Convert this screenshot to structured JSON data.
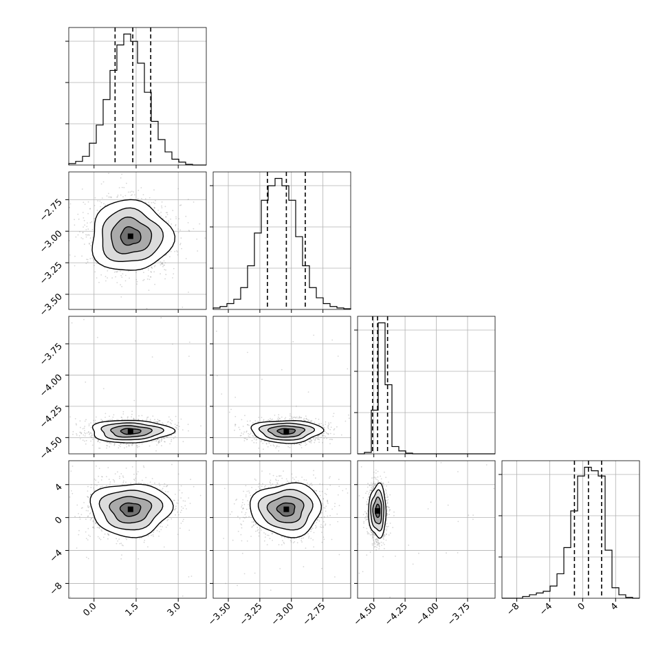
{
  "chart_data": {
    "type": "corner",
    "grid": true,
    "parameters": [
      {
        "range": [
          -0.9,
          4.0
        ],
        "ticks": [
          {
            "v": 0.0,
            "label": "0.0"
          },
          {
            "v": 1.5,
            "label": "1.5"
          },
          {
            "v": 3.0,
            "label": "3.0"
          }
        ],
        "quantiles": [
          0.75,
          1.38,
          2.02
        ],
        "hist": {
          "edges_start": -0.9,
          "bin_width": 0.245,
          "counts": [
            2,
            5,
            12,
            30,
            55,
            90,
            130,
            165,
            180,
            170,
            140,
            100,
            60,
            35,
            18,
            8,
            4,
            1,
            0,
            0
          ]
        }
      },
      {
        "range": [
          -3.62,
          -2.53
        ],
        "ticks": [
          {
            "v": -3.5,
            "label": "−3.50"
          },
          {
            "v": -3.25,
            "label": "−3.25"
          },
          {
            "v": -3.0,
            "label": "−3.00"
          },
          {
            "v": -2.75,
            "label": "−2.75"
          }
        ],
        "quantiles": [
          -3.19,
          -3.04,
          -2.89
        ],
        "hist": {
          "edges_start": -3.62,
          "bin_width": 0.0545,
          "counts": [
            2,
            4,
            8,
            14,
            30,
            60,
            105,
            150,
            170,
            180,
            170,
            150,
            100,
            60,
            30,
            16,
            8,
            4,
            2,
            1
          ]
        }
      },
      {
        "range": [
          -4.63,
          -3.53
        ],
        "ticks": [
          {
            "v": -4.5,
            "label": "−4.50"
          },
          {
            "v": -4.25,
            "label": "−4.25"
          },
          {
            "v": -4.0,
            "label": "−4.00"
          },
          {
            "v": -3.75,
            "label": "−3.75"
          }
        ],
        "quantiles": [
          -4.51,
          -4.47,
          -4.39
        ],
        "hist": {
          "edges_start": -4.63,
          "bin_width": 0.055,
          "counts": [
            0,
            2,
            60,
            180,
            95,
            10,
            4,
            1,
            0,
            0,
            0,
            0,
            0,
            0,
            0,
            0,
            0,
            0,
            0,
            0
          ]
        }
      },
      {
        "range": [
          -9.8,
          6.9
        ],
        "ticks": [
          {
            "v": -8,
            "label": "−8"
          },
          {
            "v": -4,
            "label": "−4"
          },
          {
            "v": 0,
            "label": "0"
          },
          {
            "v": 4,
            "label": "4"
          }
        ],
        "quantiles": [
          -1.0,
          0.7,
          2.3
        ],
        "hist": {
          "edges_start": -9.8,
          "bin_width": 0.835,
          "counts": [
            0,
            0,
            0,
            2,
            4,
            6,
            8,
            14,
            28,
            58,
            100,
            140,
            150,
            146,
            140,
            55,
            12,
            4,
            1,
            0
          ]
        }
      }
    ],
    "pairs": [
      {
        "row": 1,
        "col": 0,
        "center": [
          1.3,
          -3.04
        ],
        "sigma": [
          0.72,
          0.14
        ]
      },
      {
        "row": 2,
        "col": 0,
        "center": [
          1.3,
          -4.45
        ],
        "sigma": [
          0.72,
          0.045
        ]
      },
      {
        "row": 2,
        "col": 1,
        "center": [
          -3.04,
          -4.45
        ],
        "sigma": [
          0.14,
          0.045
        ]
      },
      {
        "row": 3,
        "col": 0,
        "center": [
          1.3,
          1.0
        ],
        "sigma": [
          0.72,
          1.6
        ]
      },
      {
        "row": 3,
        "col": 1,
        "center": [
          -3.04,
          1.0
        ],
        "sigma": [
          0.14,
          1.6
        ]
      },
      {
        "row": 3,
        "col": 2,
        "center": [
          -4.47,
          0.8
        ],
        "sigma": [
          0.035,
          1.6
        ]
      }
    ]
  }
}
